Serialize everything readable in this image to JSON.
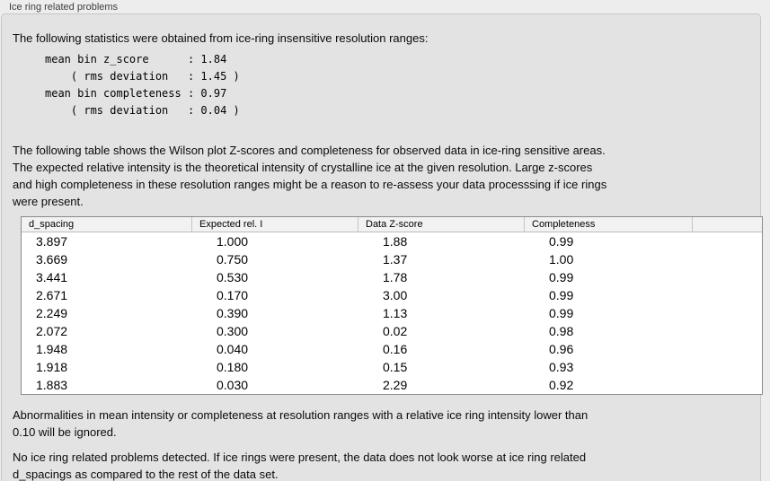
{
  "panel": {
    "title": "Ice ring related problems"
  },
  "intro": "The following statistics were obtained from ice-ring insensitive resolution ranges:",
  "stats": {
    "lines": [
      "mean bin z_score      : 1.84",
      "    ( rms deviation   : 1.45 )",
      "mean bin completeness : 0.97",
      "    ( rms deviation   : 0.04 )"
    ],
    "mean_bin_z_score": "1.84",
    "z_score_rms_deviation": "1.45",
    "mean_bin_completeness": "0.97",
    "completeness_rms_deviation": "0.04"
  },
  "description": {
    "lines": [
      "The following table shows the Wilson plot Z-scores and completeness for observed data in ice-ring sensitive areas.",
      "The expected relative intensity is the theoretical intensity of crystalline ice at the given resolution. Large z-scores",
      "and high completeness in these resolution ranges might be a reason to re-assess your data processsing if ice rings",
      "were present."
    ]
  },
  "table": {
    "columns": [
      "d_spacing",
      "Expected rel. I",
      "Data Z-score",
      "Completeness",
      ""
    ],
    "rows": [
      [
        "3.897",
        "1.000",
        "1.88",
        "0.99"
      ],
      [
        "3.669",
        "0.750",
        "1.37",
        "1.00"
      ],
      [
        "3.441",
        "0.530",
        "1.78",
        "0.99"
      ],
      [
        "2.671",
        "0.170",
        "3.00",
        "0.99"
      ],
      [
        "2.249",
        "0.390",
        "1.13",
        "0.99"
      ],
      [
        "2.072",
        "0.300",
        "0.02",
        "0.98"
      ],
      [
        "1.948",
        "0.040",
        "0.16",
        "0.96"
      ],
      [
        "1.918",
        "0.180",
        "0.15",
        "0.93"
      ],
      [
        "1.883",
        "0.030",
        "2.29",
        "0.92"
      ]
    ]
  },
  "note": {
    "lines": [
      "Abnormalities in mean intensity or completeness at resolution ranges with a relative ice ring intensity lower than",
      "0.10 will be ignored."
    ]
  },
  "conclusion": {
    "lines": [
      "No ice ring related problems detected. If ice rings were present, the data does not look worse at ice ring related",
      "d_spacings as compared to the rest of the data set."
    ]
  },
  "colors": {
    "page_background": "#ededed",
    "panel_background": "#e3e3e3",
    "table_background": "#ffffff",
    "table_border": "#8a8a8a",
    "header_background": "#f2f2f2",
    "text": "#000000"
  }
}
